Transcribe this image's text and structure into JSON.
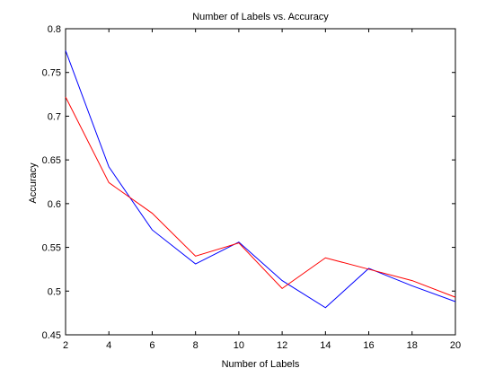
{
  "chart_data": {
    "type": "line",
    "title": "Number of Labels vs. Accuracy",
    "xlabel": "Number of Labels",
    "ylabel": "Accuracy",
    "xlim": [
      2,
      20
    ],
    "ylim": [
      0.45,
      0.8
    ],
    "xticks": [
      2,
      4,
      6,
      8,
      10,
      12,
      14,
      16,
      18,
      20
    ],
    "yticks": [
      0.45,
      0.5,
      0.55,
      0.6,
      0.65,
      0.7,
      0.75,
      0.8
    ],
    "ytick_labels": [
      "0.45",
      "0.5",
      "0.55",
      "0.6",
      "0.65",
      "0.7",
      "0.75",
      "0.8"
    ],
    "grid": false,
    "x": [
      2,
      4,
      6,
      8,
      10,
      12,
      14,
      16,
      18,
      20
    ],
    "series": [
      {
        "color": "#0000ff",
        "values": [
          0.775,
          0.642,
          0.57,
          0.531,
          0.556,
          0.512,
          0.481,
          0.526,
          0.506,
          0.488
        ]
      },
      {
        "color": "#ff0000",
        "values": [
          0.722,
          0.624,
          0.589,
          0.54,
          0.555,
          0.503,
          0.538,
          0.525,
          0.512,
          0.493
        ]
      }
    ]
  }
}
